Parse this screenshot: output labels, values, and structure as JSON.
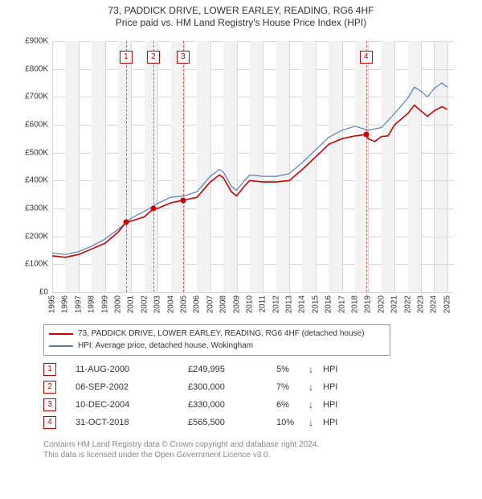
{
  "title": "73, PADDICK DRIVE, LOWER EARLEY, READING, RG6 4HF",
  "subtitle": "Price paid vs. HM Land Registry's House Price Index (HPI)",
  "chart": {
    "type": "line",
    "background_color": "#ffffff",
    "grid_color": "#d9d9d9",
    "band_color": "#f2f2f2",
    "marker_line_color": "#cc0000",
    "marker_box_border": "#cc0000",
    "marker_text_color": "#cc0000",
    "x_years": [
      1995,
      1996,
      1997,
      1998,
      1999,
      2000,
      2001,
      2002,
      2003,
      2004,
      2005,
      2006,
      2007,
      2008,
      2009,
      2010,
      2011,
      2012,
      2013,
      2014,
      2015,
      2016,
      2017,
      2018,
      2019,
      2020,
      2021,
      2022,
      2023,
      2024,
      2025
    ],
    "xlim": [
      1995,
      2025.5
    ],
    "ylim": [
      0,
      900
    ],
    "ytick_step": 100,
    "yticks": [
      "£0",
      "£100K",
      "£200K",
      "£300K",
      "£400K",
      "£500K",
      "£600K",
      "£700K",
      "£800K",
      "£900K"
    ],
    "axis_font_size": 10,
    "series": [
      {
        "name": "73, PADDICK DRIVE, LOWER EARLEY, READING, RG6 4HF (detached house)",
        "color": "#cc0000",
        "width": 1.6,
        "data": [
          [
            1995.0,
            130
          ],
          [
            1996.0,
            125
          ],
          [
            1997.0,
            135
          ],
          [
            1998.0,
            155
          ],
          [
            1999.0,
            175
          ],
          [
            2000.0,
            215
          ],
          [
            2000.6,
            250
          ],
          [
            2001.0,
            255
          ],
          [
            2002.0,
            270
          ],
          [
            2002.7,
            300
          ],
          [
            2003.0,
            300
          ],
          [
            2004.0,
            320
          ],
          [
            2004.95,
            330
          ],
          [
            2005.0,
            330
          ],
          [
            2006.0,
            340
          ],
          [
            2007.0,
            395
          ],
          [
            2007.7,
            420
          ],
          [
            2008.0,
            410
          ],
          [
            2008.6,
            360
          ],
          [
            2009.0,
            345
          ],
          [
            2009.6,
            380
          ],
          [
            2010.0,
            400
          ],
          [
            2011.0,
            395
          ],
          [
            2012.0,
            395
          ],
          [
            2013.0,
            400
          ],
          [
            2014.0,
            440
          ],
          [
            2015.0,
            485
          ],
          [
            2016.0,
            530
          ],
          [
            2017.0,
            550
          ],
          [
            2018.0,
            560
          ],
          [
            2018.83,
            565
          ],
          [
            2019.0,
            550
          ],
          [
            2019.5,
            540
          ],
          [
            2020.0,
            558
          ],
          [
            2020.5,
            560
          ],
          [
            2021.0,
            600
          ],
          [
            2022.0,
            640
          ],
          [
            2022.5,
            670
          ],
          [
            2023.0,
            650
          ],
          [
            2023.5,
            630
          ],
          [
            2024.0,
            650
          ],
          [
            2024.6,
            665
          ],
          [
            2025.0,
            655
          ]
        ]
      },
      {
        "name": "HPI: Average price, detached house, Wokingham",
        "color": "#5b7fb2",
        "width": 1.2,
        "data": [
          [
            1995.0,
            140
          ],
          [
            1996.0,
            135
          ],
          [
            1997.0,
            145
          ],
          [
            1998.0,
            165
          ],
          [
            1999.0,
            190
          ],
          [
            2000.0,
            225
          ],
          [
            2001.0,
            265
          ],
          [
            2002.0,
            290
          ],
          [
            2003.0,
            318
          ],
          [
            2004.0,
            340
          ],
          [
            2005.0,
            345
          ],
          [
            2006.0,
            360
          ],
          [
            2007.0,
            415
          ],
          [
            2007.7,
            440
          ],
          [
            2008.0,
            430
          ],
          [
            2008.6,
            380
          ],
          [
            2009.0,
            365
          ],
          [
            2009.6,
            400
          ],
          [
            2010.0,
            420
          ],
          [
            2011.0,
            415
          ],
          [
            2012.0,
            415
          ],
          [
            2013.0,
            425
          ],
          [
            2014.0,
            465
          ],
          [
            2015.0,
            510
          ],
          [
            2016.0,
            555
          ],
          [
            2017.0,
            580
          ],
          [
            2018.0,
            595
          ],
          [
            2019.0,
            580
          ],
          [
            2020.0,
            590
          ],
          [
            2021.0,
            640
          ],
          [
            2022.0,
            695
          ],
          [
            2022.5,
            735
          ],
          [
            2023.0,
            720
          ],
          [
            2023.5,
            700
          ],
          [
            2024.0,
            730
          ],
          [
            2024.6,
            750
          ],
          [
            2025.0,
            735
          ]
        ]
      }
    ],
    "markers": [
      {
        "n": "1",
        "x": 2000.61
      },
      {
        "n": "2",
        "x": 2002.68
      },
      {
        "n": "3",
        "x": 2004.94
      },
      {
        "n": "4",
        "x": 2018.83
      }
    ]
  },
  "legend": [
    {
      "color": "#cc0000",
      "label": "73, PADDICK DRIVE, LOWER EARLEY, READING, RG6 4HF (detached house)"
    },
    {
      "color": "#5b7fb2",
      "label": "HPI: Average price, detached house, Wokingham"
    }
  ],
  "transactions": [
    {
      "n": "1",
      "date": "11-AUG-2000",
      "price": "£249,995",
      "pct": "5%",
      "arrow": "↓",
      "hpi_label": "HPI"
    },
    {
      "n": "2",
      "date": "06-SEP-2002",
      "price": "£300,000",
      "pct": "7%",
      "arrow": "↓",
      "hpi_label": "HPI"
    },
    {
      "n": "3",
      "date": "10-DEC-2004",
      "price": "£330,000",
      "pct": "6%",
      "arrow": "↓",
      "hpi_label": "HPI"
    },
    {
      "n": "4",
      "date": "31-OCT-2018",
      "price": "£565,500",
      "pct": "10%",
      "arrow": "↓",
      "hpi_label": "HPI"
    }
  ],
  "footer": {
    "line1": "Contains HM Land Registry data © Crown copyright and database right 2024.",
    "line2": "This data is licensed under the Open Government Licence v3.0."
  }
}
